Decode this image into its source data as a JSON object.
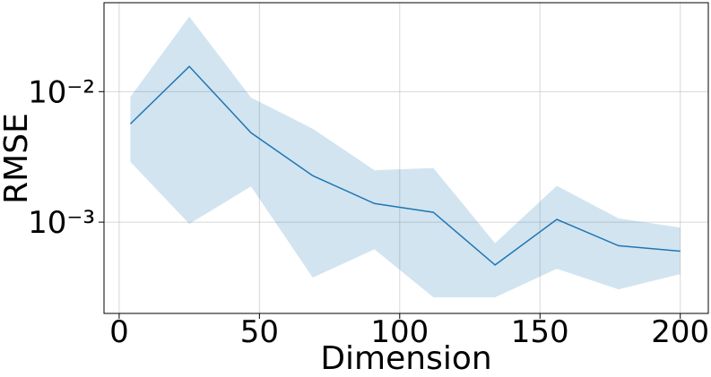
{
  "chart_data": {
    "type": "line",
    "x_label": "Dimension",
    "y_label": "RMSE",
    "log_y": true,
    "grid": true,
    "x": [
      4,
      25,
      47,
      69,
      91,
      112,
      134,
      156,
      178,
      200
    ],
    "series": [
      {
        "color": "#1f77b4",
        "band_color": "#1f77b4",
        "values": [
          0.00566,
          0.0156,
          0.00484,
          0.00227,
          0.00139,
          0.00119,
          0.00047,
          0.00105,
          0.00066,
          0.0006
        ],
        "upper": [
          0.0091,
          0.0376,
          0.009,
          0.0052,
          0.0025,
          0.0026,
          0.00069,
          0.0019,
          0.00107,
          0.00091
        ],
        "lower": [
          0.0029,
          0.00097,
          0.00188,
          0.000376,
          0.00062,
          0.000266,
          0.000266,
          0.00044,
          0.000306,
          0.0004
        ]
      }
    ],
    "xlim": [
      -5.4,
      210
    ],
    "ylim": [
      0.0002,
      0.048
    ],
    "xticks": [
      0,
      50,
      100,
      150,
      200
    ],
    "yticks": [
      {
        "value": 0.001,
        "label": "10⁻³"
      },
      {
        "value": 0.01,
        "label": "10⁻²"
      }
    ]
  }
}
